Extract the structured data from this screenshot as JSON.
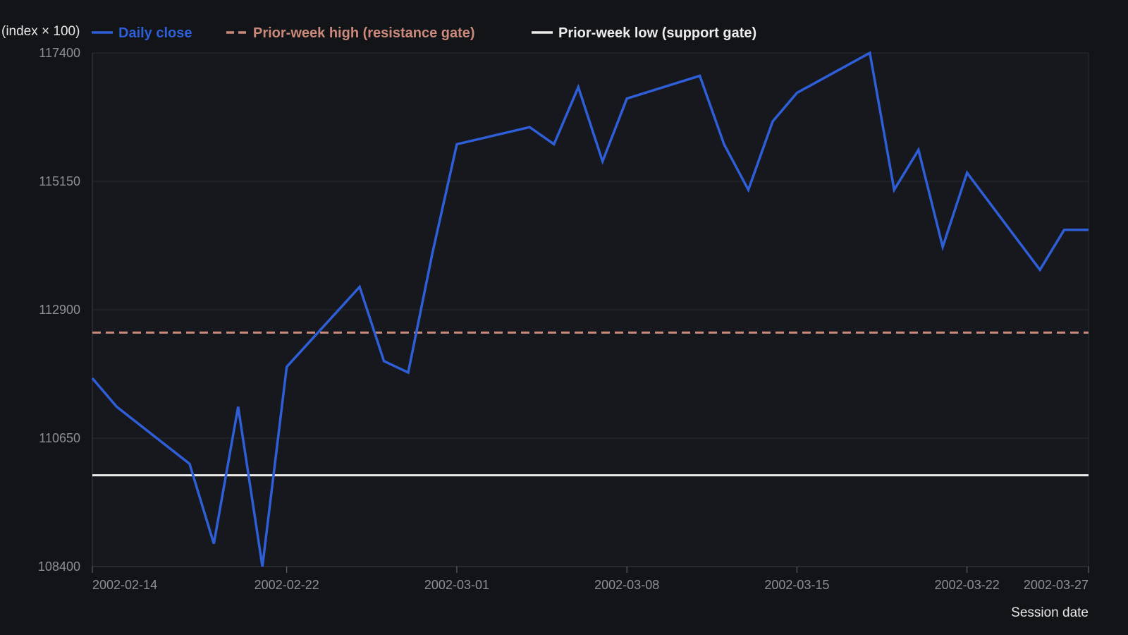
{
  "chart_data": {
    "type": "line",
    "title": "",
    "xlabel": "Session date",
    "ylabel": "(index × 100)",
    "ylim": [
      108400,
      117400
    ],
    "yticks": [
      "108400",
      "110650",
      "112900",
      "115150",
      "117400"
    ],
    "xticks": [
      "2002-02-14",
      "2002-02-22",
      "2002-03-01",
      "2002-03-08",
      "2002-03-15",
      "2002-03-22",
      "2002-03-27"
    ],
    "xlim": [
      "2002-02-14",
      "2002-03-27"
    ],
    "grid": true,
    "legend_position": "top",
    "series": [
      {
        "name": "Daily close",
        "color": "#2e5fd8",
        "style": "solid",
        "x": [
          "2002-02-14",
          "2002-02-15",
          "2002-02-18",
          "2002-02-19",
          "2002-02-20",
          "2002-02-21",
          "2002-02-22",
          "2002-02-25",
          "2002-02-26",
          "2002-02-27",
          "2002-02-28",
          "2002-03-01",
          "2002-03-04",
          "2002-03-05",
          "2002-03-06",
          "2002-03-07",
          "2002-03-08",
          "2002-03-11",
          "2002-03-12",
          "2002-03-13",
          "2002-03-14",
          "2002-03-15",
          "2002-03-18",
          "2002-03-19",
          "2002-03-20",
          "2002-03-21",
          "2002-03-22",
          "2002-03-25",
          "2002-03-26",
          "2002-03-27"
        ],
        "values": [
          111700,
          111200,
          110200,
          108800,
          111200,
          108400,
          111900,
          113300,
          112000,
          111800,
          113900,
          115800,
          116100,
          115800,
          116800,
          115500,
          116600,
          117000,
          115800,
          115000,
          116200,
          116700,
          117400,
          115000,
          115700,
          114000,
          115300,
          113600,
          114300,
          114300
        ]
      },
      {
        "name": "Prior-week high (resistance gate)",
        "color": "#c98a7c",
        "style": "dashed",
        "x": [
          "2002-02-14",
          "2002-03-27"
        ],
        "values": [
          112500,
          112500
        ]
      },
      {
        "name": "Prior-week low (support gate)",
        "color": "#ececec",
        "style": "solid",
        "x": [
          "2002-02-14",
          "2002-03-27"
        ],
        "values": [
          110000,
          110000
        ]
      }
    ]
  }
}
